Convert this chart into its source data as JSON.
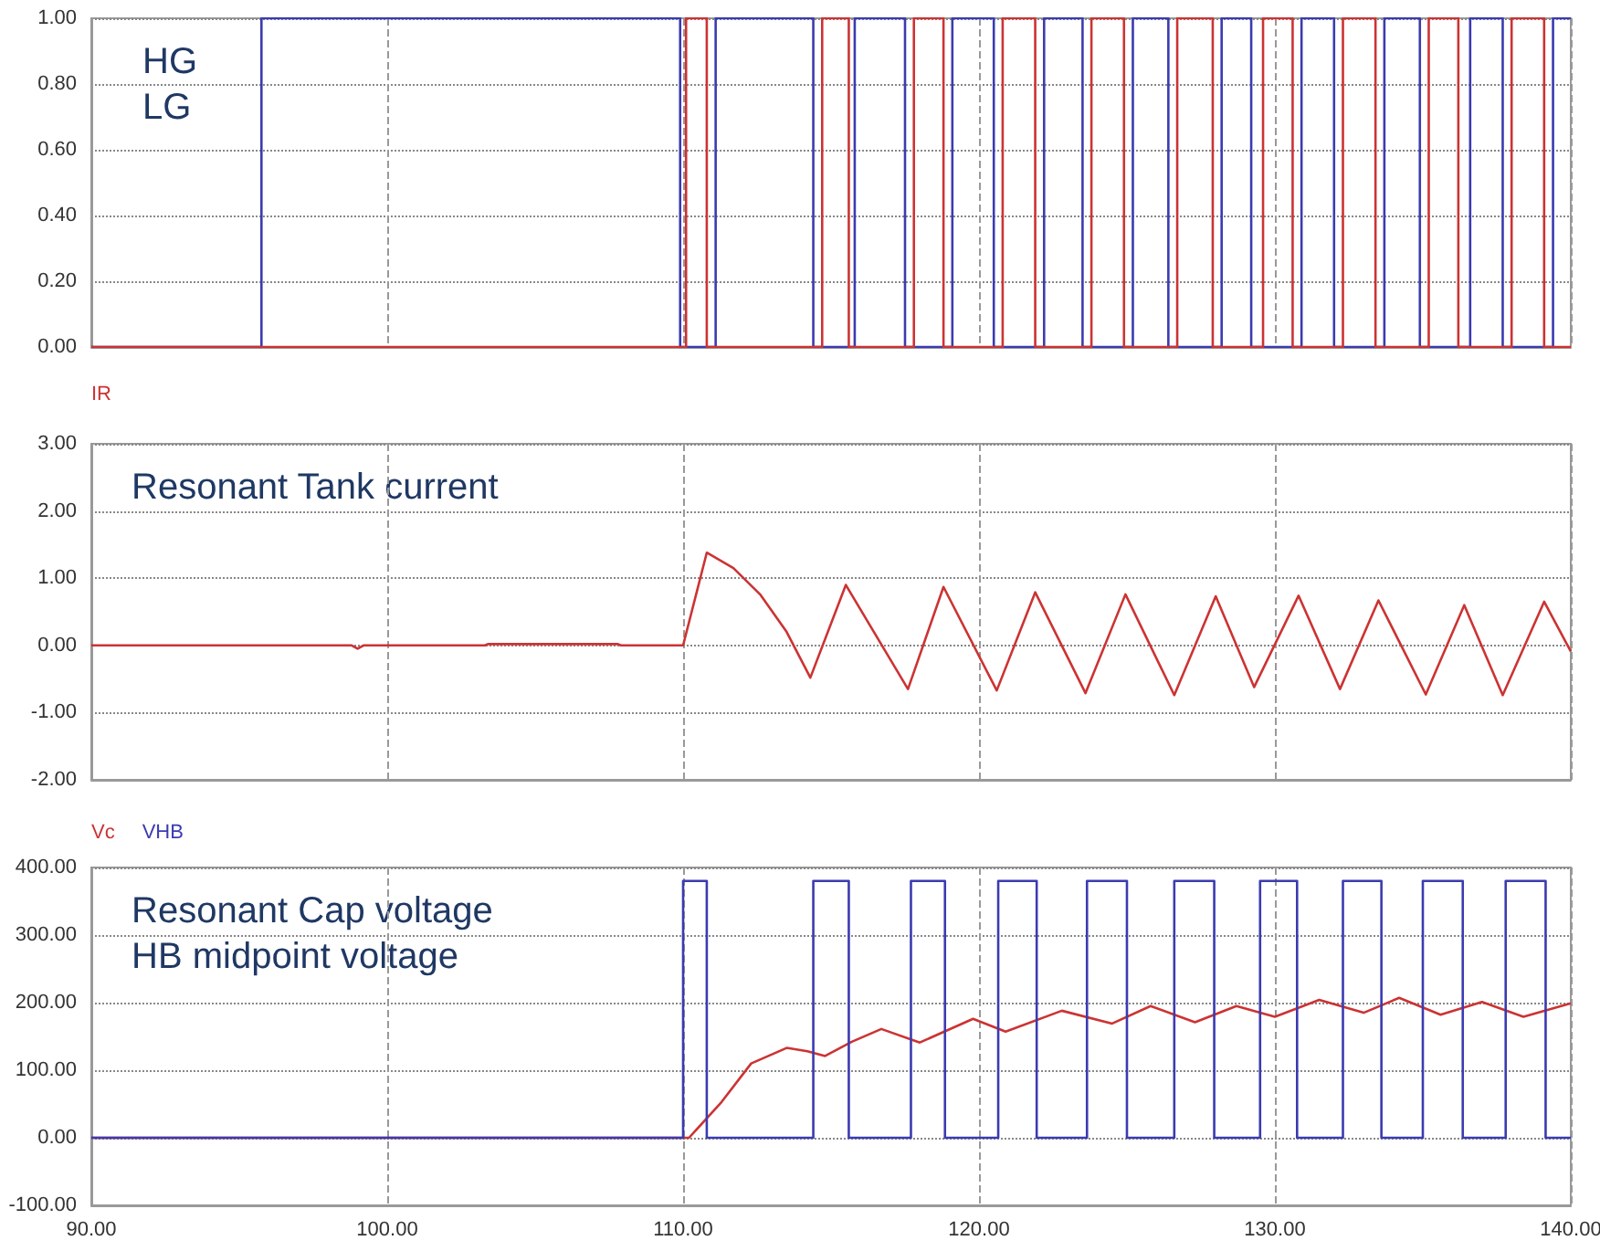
{
  "chart_data": [
    {
      "type": "step",
      "annotations": [
        "HG",
        "LG"
      ],
      "xlim": [
        90,
        140
      ],
      "xticks": [
        {
          "value": 90,
          "label": null
        },
        {
          "value": 100,
          "label": null
        },
        {
          "value": 110,
          "label": null
        },
        {
          "value": 120,
          "label": null
        },
        {
          "value": 130,
          "label": null
        },
        {
          "value": 140,
          "label": null
        }
      ],
      "ylim": [
        0,
        1
      ],
      "yticks": [
        {
          "value": 0,
          "label": "0.00"
        },
        {
          "value": 0.2,
          "label": "0.20"
        },
        {
          "value": 0.4,
          "label": "0.40"
        },
        {
          "value": 0.6,
          "label": "0.60"
        },
        {
          "value": 0.8,
          "label": "0.80"
        },
        {
          "value": 1,
          "label": "1.00"
        }
      ],
      "grid": true,
      "tick_labels": "y",
      "series": [
        {
          "color": "#3b3bb0",
          "x": [
            90,
            95.75,
            109.9,
            111.1,
            114.4,
            115.8,
            117.5,
            119.1,
            120.5,
            122.2,
            123.5,
            125.2,
            126.4,
            128.2,
            129.2,
            130.9,
            132.0,
            133.7,
            134.9,
            136.6,
            137.7,
            139.4,
            140
          ],
          "values": [
            0,
            1,
            0,
            1,
            0,
            1,
            0,
            1,
            0,
            1,
            0,
            1,
            0,
            1,
            0,
            1,
            0,
            1,
            0,
            1,
            0,
            1,
            1
          ]
        },
        {
          "color": "#cc3333",
          "x": [
            90,
            110.1,
            110.8,
            114.7,
            115.6,
            117.8,
            118.8,
            120.8,
            121.9,
            123.8,
            124.9,
            126.7,
            127.9,
            129.6,
            130.6,
            132.3,
            133.4,
            135.2,
            136.2,
            138.0,
            139.1,
            140
          ],
          "values": [
            0,
            1,
            0,
            1,
            0,
            1,
            0,
            1,
            0,
            1,
            0,
            1,
            0,
            1,
            0,
            1,
            0,
            1,
            0,
            1,
            0,
            0
          ]
        }
      ]
    },
    {
      "type": "line",
      "annotations": [
        "Resonant Tank current"
      ],
      "legend": "top left",
      "xlim": [
        90,
        140
      ],
      "xticks": [
        {
          "value": 90,
          "label": null
        },
        {
          "value": 100,
          "label": null
        },
        {
          "value": 110,
          "label": null
        },
        {
          "value": 120,
          "label": null
        },
        {
          "value": 130,
          "label": null
        },
        {
          "value": 140,
          "label": null
        }
      ],
      "ylim": [
        -2,
        3
      ],
      "yticks": [
        {
          "value": -2,
          "label": "-2.00"
        },
        {
          "value": -1,
          "label": "-1.00"
        },
        {
          "value": 0,
          "label": "0.00"
        },
        {
          "value": 1,
          "label": "1.00"
        },
        {
          "value": 2,
          "label": "2.00"
        },
        {
          "value": 3,
          "label": "3.00"
        }
      ],
      "grid": true,
      "tick_labels": "y",
      "series": [
        {
          "name": "IR",
          "color": "#cc3333",
          "x": [
            90,
            98.8,
            99.0,
            99.2,
            103.3,
            103.4,
            107.8,
            107.9,
            110.0,
            110.8,
            111.7,
            112.6,
            113.5,
            114.3,
            115.5,
            117.6,
            118.8,
            120.6,
            121.9,
            123.6,
            124.95,
            126.6,
            128.0,
            129.3,
            130.8,
            132.2,
            133.5,
            135.1,
            136.4,
            137.7,
            139.1,
            140
          ],
          "values": [
            0,
            0,
            -0.05,
            0,
            0,
            0.02,
            0.02,
            0,
            0,
            1.38,
            1.15,
            0.76,
            0.2,
            -0.48,
            0.9,
            -0.65,
            0.87,
            -0.67,
            0.79,
            -0.71,
            0.76,
            -0.74,
            0.73,
            -0.62,
            0.74,
            -0.65,
            0.67,
            -0.73,
            0.6,
            -0.74,
            0.65,
            -0.09
          ]
        }
      ]
    },
    {
      "type": "line",
      "annotations": [
        "Resonant Cap voltage",
        "HB midpoint voltage"
      ],
      "legend": "top left",
      "xlim": [
        90,
        140
      ],
      "xticks": [
        {
          "value": 90,
          "label": "90.00"
        },
        {
          "value": 100,
          "label": "100.00"
        },
        {
          "value": 110,
          "label": "110.00"
        },
        {
          "value": 120,
          "label": "120.00"
        },
        {
          "value": 130,
          "label": "130.00"
        },
        {
          "value": 140,
          "label": "140.00"
        }
      ],
      "ylim": [
        -100,
        400
      ],
      "yticks": [
        {
          "value": -100,
          "label": "-100.00"
        },
        {
          "value": 0,
          "label": "0.00"
        },
        {
          "value": 100,
          "label": "100.00"
        },
        {
          "value": 200,
          "label": "200.00"
        },
        {
          "value": 300,
          "label": "300.00"
        },
        {
          "value": 400,
          "label": "400.00"
        }
      ],
      "grid": true,
      "series": [
        {
          "name": "Vc",
          "color": "#cc3333",
          "x": [
            90,
            110.0,
            110.2,
            111.3,
            112.3,
            113.5,
            114.2,
            114.8,
            115.7,
            116.7,
            118.0,
            119.8,
            120.9,
            122.8,
            124.5,
            125.8,
            127.3,
            128.7,
            130.0,
            131.5,
            133.0,
            134.2,
            135.6,
            137.0,
            138.4,
            140
          ],
          "values": [
            0,
            0,
            0,
            53,
            110,
            133,
            128,
            121,
            142,
            161,
            141,
            176,
            157,
            188,
            169,
            195,
            171,
            195,
            179,
            204,
            185,
            207,
            182,
            201,
            179,
            199
          ]
        },
        {
          "name": "VHB",
          "type": "step",
          "color": "#3b3bb0",
          "x": [
            90,
            110.0,
            110.8,
            114.4,
            115.6,
            117.7,
            118.85,
            120.65,
            121.95,
            123.65,
            125.0,
            126.6,
            127.95,
            129.5,
            130.75,
            132.3,
            133.6,
            135.0,
            136.35,
            137.8,
            139.15,
            140
          ],
          "values": [
            0,
            380,
            0,
            380,
            0,
            380,
            0,
            380,
            0,
            380,
            0,
            380,
            0,
            380,
            0,
            380,
            0,
            380,
            0,
            380,
            0,
            0
          ]
        }
      ]
    }
  ]
}
